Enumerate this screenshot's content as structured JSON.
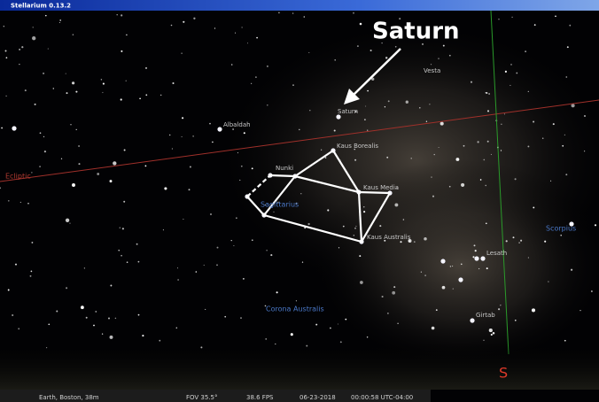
{
  "window": {
    "title": "Stellarium 0.13.2"
  },
  "annotation": {
    "text": "Saturn"
  },
  "sky_labels": [
    {
      "text": "Vesta"
    },
    {
      "text": "Saturn"
    },
    {
      "text": "Albaldah"
    },
    {
      "text": "Kaus Borealis"
    },
    {
      "text": "Nunki"
    },
    {
      "text": "Kaus Media"
    },
    {
      "text": "Kaus Australis"
    },
    {
      "text": "Lesath"
    },
    {
      "text": "Girtab"
    }
  ],
  "constellations": [
    {
      "text": "Sagittarius"
    },
    {
      "text": "Scorpius"
    },
    {
      "text": "Corona Australis"
    }
  ],
  "lines": {
    "ecliptic": "Ecliptic"
  },
  "cardinal": "S",
  "status_bar": {
    "location": "Earth, Boston, 38m",
    "fov": "FOV 35.5°",
    "fps": "38.6 FPS",
    "date": "06-23-2018",
    "time": "00:00:58 UTC-04:00"
  }
}
